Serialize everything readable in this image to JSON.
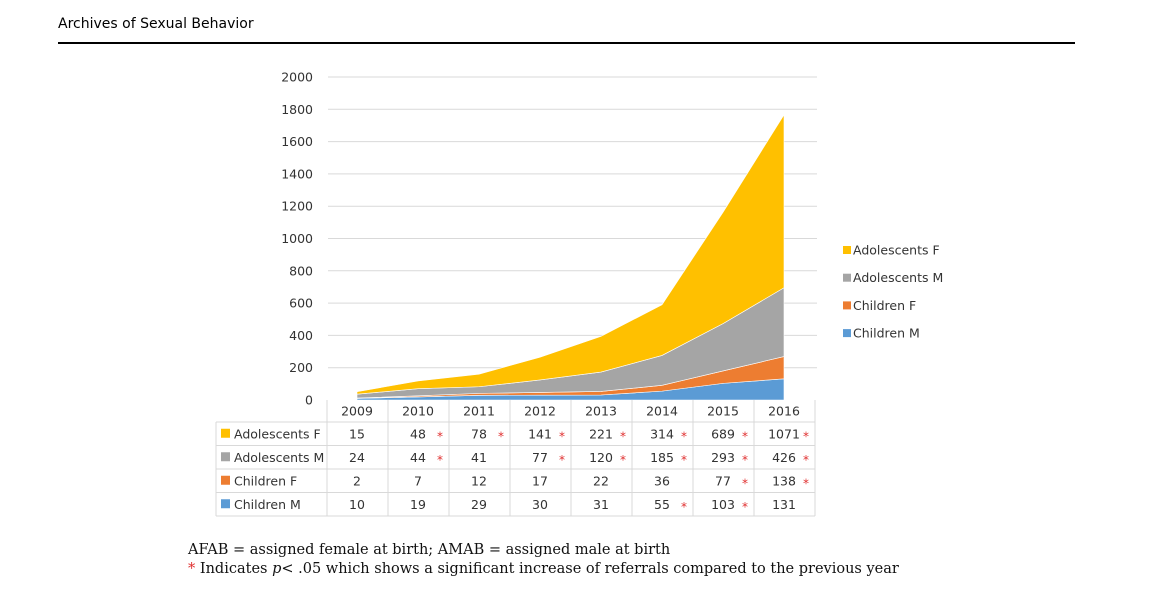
{
  "header": {
    "journal": "Archives of Sexual Behavior"
  },
  "colors": {
    "adolescents_f": "#FFC000",
    "adolescents_m": "#A5A5A5",
    "children_f": "#ED7D31",
    "children_m": "#5B9BD5",
    "star": "#e03030"
  },
  "chart_data": {
    "type": "area",
    "stacked": true,
    "categories": [
      "2009",
      "2010",
      "2011",
      "2012",
      "2013",
      "2014",
      "2015",
      "2016"
    ],
    "ylim": [
      0,
      2000
    ],
    "yticks": [
      "0",
      "200",
      "400",
      "600",
      "800",
      "1000",
      "1200",
      "1400",
      "1600",
      "1800",
      "2000"
    ],
    "grid": true,
    "legend_position": "right",
    "series": [
      {
        "name": "Children M",
        "key": "children_m",
        "values": [
          10,
          19,
          29,
          30,
          31,
          55,
          103,
          131
        ],
        "stars": [
          false,
          false,
          false,
          false,
          false,
          true,
          true,
          false
        ]
      },
      {
        "name": "Children F",
        "key": "children_f",
        "values": [
          2,
          7,
          12,
          17,
          22,
          36,
          77,
          138
        ],
        "stars": [
          false,
          false,
          false,
          false,
          false,
          false,
          true,
          true
        ]
      },
      {
        "name": "Adolescents M",
        "key": "adolescents_m",
        "values": [
          24,
          44,
          41,
          77,
          120,
          185,
          293,
          426
        ],
        "stars": [
          false,
          true,
          false,
          true,
          true,
          true,
          true,
          true
        ]
      },
      {
        "name": "Adolescents F",
        "key": "adolescents_f",
        "values": [
          15,
          48,
          78,
          141,
          221,
          314,
          689,
          1071
        ],
        "stars": [
          false,
          true,
          true,
          true,
          true,
          true,
          true,
          true
        ]
      }
    ],
    "table_order": [
      "adolescents_f",
      "adolescents_m",
      "children_f",
      "children_m"
    ],
    "legend_order": [
      "adolescents_f",
      "adolescents_m",
      "children_f",
      "children_m"
    ]
  },
  "footnotes": {
    "line1": "AFAB = assigned female at birth; AMAB = assigned male at birth",
    "star": "*",
    "line2_prefix": " Indicates ",
    "line2_p": "p",
    "line2_rest": "< .05 which shows a significant increase of referrals compared to the previous year"
  }
}
